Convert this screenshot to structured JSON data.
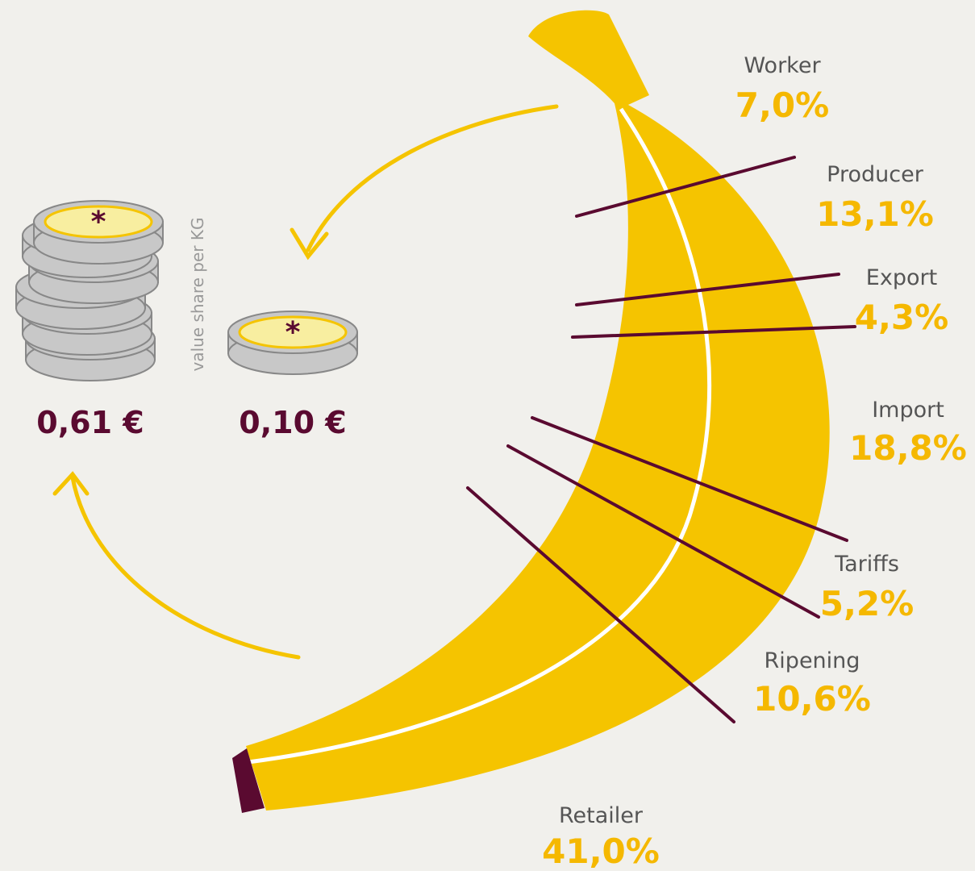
{
  "segments": [
    {
      "label": "Worker",
      "share": "7,0%"
    },
    {
      "label": "Producer",
      "share": "13,1%"
    },
    {
      "label": "Export",
      "share": "4,3%"
    },
    {
      "label": "Import",
      "share": "18,8%"
    },
    {
      "label": "Tariffs",
      "share": "5,2%"
    },
    {
      "label": "Ripening",
      "share": "10,6%"
    },
    {
      "label": "Retailer",
      "share": "41,0%"
    }
  ],
  "coins": [
    {
      "amount": "0,61 €"
    },
    {
      "amount": "0,10 €"
    }
  ],
  "coin_caption": "value share per KG"
}
